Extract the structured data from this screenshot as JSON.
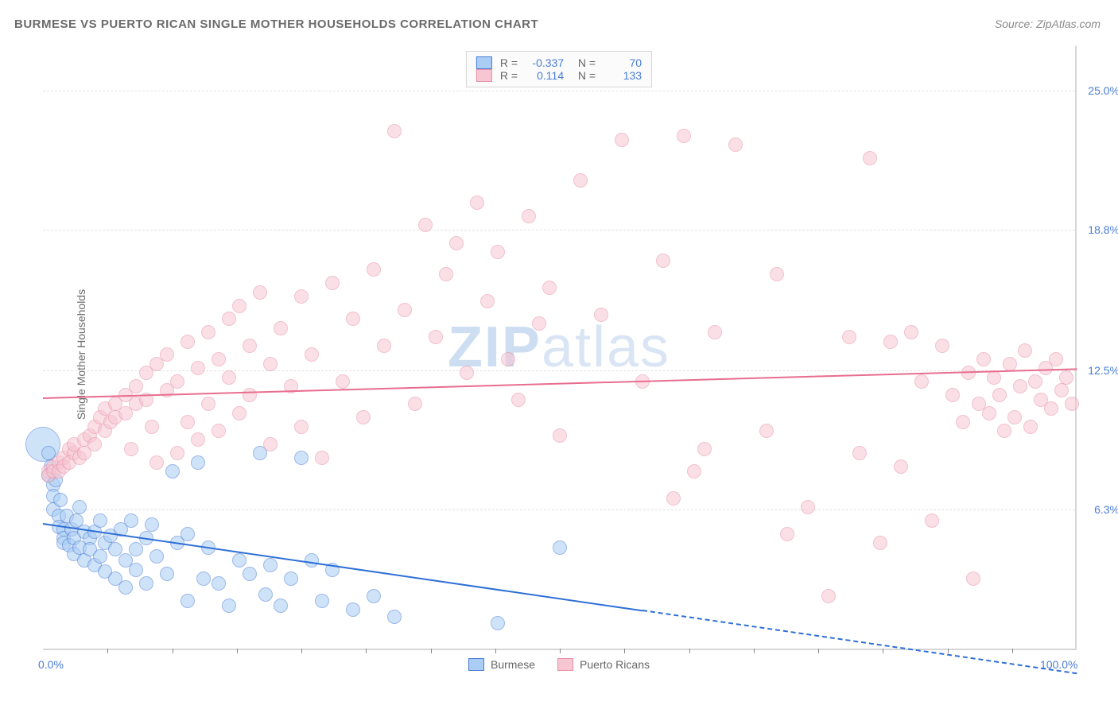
{
  "title": "BURMESE VS PUERTO RICAN SINGLE MOTHER HOUSEHOLDS CORRELATION CHART",
  "source": "Source: ZipAtlas.com",
  "ylabel": "Single Mother Households",
  "watermark": {
    "bold": "ZIP",
    "light": "atlas"
  },
  "chart": {
    "type": "scatter",
    "xlim": [
      0,
      100
    ],
    "ylim": [
      0,
      27
    ],
    "background_color": "#ffffff",
    "grid_color": "#e2e2e2",
    "axis_color": "#d6d6d6",
    "tick_label_color": "#4a7dd6",
    "yticks": [
      {
        "v": 6.3,
        "label": "6.3%"
      },
      {
        "v": 12.5,
        "label": "12.5%"
      },
      {
        "v": 18.8,
        "label": "18.8%"
      },
      {
        "v": 25.0,
        "label": "25.0%"
      }
    ],
    "xticks_minor": [
      6.25,
      12.5,
      18.75,
      25,
      31.25,
      37.5,
      43.75,
      50,
      56.25,
      62.5,
      68.75,
      75,
      81.25,
      87.5,
      93.75
    ],
    "xtick_labels": [
      {
        "v": 0,
        "label": "0.0%"
      },
      {
        "v": 100,
        "label": "100.0%"
      }
    ],
    "marker_radius": 9,
    "marker_opacity": 0.55,
    "series": [
      {
        "name": "Burmese",
        "color_fill": "#a9cdf4",
        "color_stroke": "#4a7dd6",
        "R": "-0.337",
        "N": "70",
        "trend": {
          "y_at_x0": 5.7,
          "y_at_x100": -1.0,
          "solid_until_x": 58,
          "color": "#2e6fd6"
        },
        "points": [
          [
            0.5,
            7.8
          ],
          [
            0.5,
            8.8
          ],
          [
            0.8,
            8.2
          ],
          [
            1,
            7.4
          ],
          [
            1,
            6.9
          ],
          [
            1,
            6.3
          ],
          [
            1.2,
            7.6
          ],
          [
            1.5,
            6.0
          ],
          [
            1.5,
            5.5
          ],
          [
            1.7,
            6.7
          ],
          [
            2,
            5.4
          ],
          [
            2,
            5.0
          ],
          [
            2,
            4.8
          ],
          [
            2.3,
            6.0
          ],
          [
            2.5,
            4.7
          ],
          [
            2.8,
            5.4
          ],
          [
            3,
            5.0
          ],
          [
            3,
            4.3
          ],
          [
            3.2,
            5.8
          ],
          [
            3.5,
            6.4
          ],
          [
            3.5,
            4.6
          ],
          [
            4,
            5.3
          ],
          [
            4,
            4.0
          ],
          [
            4.5,
            5.0
          ],
          [
            4.5,
            4.5
          ],
          [
            5,
            5.3
          ],
          [
            5,
            3.8
          ],
          [
            5.5,
            5.8
          ],
          [
            5.5,
            4.2
          ],
          [
            6,
            4.8
          ],
          [
            6,
            3.5
          ],
          [
            6.5,
            5.1
          ],
          [
            7,
            4.5
          ],
          [
            7,
            3.2
          ],
          [
            7.5,
            5.4
          ],
          [
            8,
            4.0
          ],
          [
            8,
            2.8
          ],
          [
            8.5,
            5.8
          ],
          [
            9,
            3.6
          ],
          [
            9,
            4.5
          ],
          [
            10,
            5.0
          ],
          [
            10,
            3.0
          ],
          [
            10.5,
            5.6
          ],
          [
            11,
            4.2
          ],
          [
            12,
            3.4
          ],
          [
            12.5,
            8.0
          ],
          [
            13,
            4.8
          ],
          [
            14,
            5.2
          ],
          [
            14,
            2.2
          ],
          [
            15,
            8.4
          ],
          [
            15.5,
            3.2
          ],
          [
            16,
            4.6
          ],
          [
            17,
            3.0
          ],
          [
            18,
            2.0
          ],
          [
            19,
            4.0
          ],
          [
            20,
            3.4
          ],
          [
            21,
            8.8
          ],
          [
            21.5,
            2.5
          ],
          [
            22,
            3.8
          ],
          [
            23,
            2.0
          ],
          [
            24,
            3.2
          ],
          [
            25,
            8.6
          ],
          [
            26,
            4.0
          ],
          [
            27,
            2.2
          ],
          [
            28,
            3.6
          ],
          [
            30,
            1.8
          ],
          [
            32,
            2.4
          ],
          [
            34,
            1.5
          ],
          [
            44,
            1.2
          ],
          [
            50,
            4.6
          ]
        ],
        "big_points": [
          [
            0,
            9.2,
            22
          ]
        ]
      },
      {
        "name": "Puerto Ricans",
        "color_fill": "#f6c6d2",
        "color_stroke": "#e88fa6",
        "R": "0.114",
        "N": "133",
        "trend": {
          "y_at_x0": 11.3,
          "y_at_x100": 12.6,
          "solid_until_x": 100,
          "color": "#e86d8e"
        },
        "points": [
          [
            0.5,
            8.0
          ],
          [
            0.5,
            7.8
          ],
          [
            1,
            8.2
          ],
          [
            1,
            8.0
          ],
          [
            1.5,
            8.4
          ],
          [
            1.5,
            8.0
          ],
          [
            2,
            8.6
          ],
          [
            2,
            8.2
          ],
          [
            2.5,
            9.0
          ],
          [
            2.5,
            8.4
          ],
          [
            3,
            8.8
          ],
          [
            3,
            9.2
          ],
          [
            3.5,
            8.6
          ],
          [
            4,
            9.4
          ],
          [
            4,
            8.8
          ],
          [
            4.5,
            9.6
          ],
          [
            5,
            10.0
          ],
          [
            5,
            9.2
          ],
          [
            5.5,
            10.4
          ],
          [
            6,
            9.8
          ],
          [
            6,
            10.8
          ],
          [
            6.5,
            10.2
          ],
          [
            7,
            11.0
          ],
          [
            7,
            10.4
          ],
          [
            8,
            11.4
          ],
          [
            8,
            10.6
          ],
          [
            8.5,
            9.0
          ],
          [
            9,
            11.8
          ],
          [
            9,
            11.0
          ],
          [
            10,
            12.4
          ],
          [
            10,
            11.2
          ],
          [
            10.5,
            10.0
          ],
          [
            11,
            12.8
          ],
          [
            11,
            8.4
          ],
          [
            12,
            13.2
          ],
          [
            12,
            11.6
          ],
          [
            13,
            12.0
          ],
          [
            13,
            8.8
          ],
          [
            14,
            13.8
          ],
          [
            14,
            10.2
          ],
          [
            15,
            12.6
          ],
          [
            15,
            9.4
          ],
          [
            16,
            14.2
          ],
          [
            16,
            11.0
          ],
          [
            17,
            13.0
          ],
          [
            17,
            9.8
          ],
          [
            18,
            14.8
          ],
          [
            18,
            12.2
          ],
          [
            19,
            15.4
          ],
          [
            19,
            10.6
          ],
          [
            20,
            13.6
          ],
          [
            20,
            11.4
          ],
          [
            21,
            16.0
          ],
          [
            22,
            12.8
          ],
          [
            22,
            9.2
          ],
          [
            23,
            14.4
          ],
          [
            24,
            11.8
          ],
          [
            25,
            15.8
          ],
          [
            25,
            10.0
          ],
          [
            26,
            13.2
          ],
          [
            27,
            8.6
          ],
          [
            28,
            16.4
          ],
          [
            29,
            12.0
          ],
          [
            30,
            14.8
          ],
          [
            31,
            10.4
          ],
          [
            32,
            17.0
          ],
          [
            33,
            13.6
          ],
          [
            34,
            23.2
          ],
          [
            35,
            15.2
          ],
          [
            36,
            11.0
          ],
          [
            37,
            19.0
          ],
          [
            38,
            14.0
          ],
          [
            39,
            16.8
          ],
          [
            40,
            18.2
          ],
          [
            41,
            12.4
          ],
          [
            42,
            20.0
          ],
          [
            43,
            15.6
          ],
          [
            44,
            17.8
          ],
          [
            45,
            13.0
          ],
          [
            46,
            11.2
          ],
          [
            47,
            19.4
          ],
          [
            48,
            14.6
          ],
          [
            49,
            16.2
          ],
          [
            50,
            9.6
          ],
          [
            52,
            21.0
          ],
          [
            54,
            15.0
          ],
          [
            56,
            22.8
          ],
          [
            58,
            12.0
          ],
          [
            60,
            17.4
          ],
          [
            61,
            6.8
          ],
          [
            62,
            23.0
          ],
          [
            63,
            8.0
          ],
          [
            64,
            9.0
          ],
          [
            65,
            14.2
          ],
          [
            67,
            22.6
          ],
          [
            70,
            9.8
          ],
          [
            71,
            16.8
          ],
          [
            72,
            5.2
          ],
          [
            74,
            6.4
          ],
          [
            76,
            2.4
          ],
          [
            78,
            14.0
          ],
          [
            79,
            8.8
          ],
          [
            80,
            22.0
          ],
          [
            81,
            4.8
          ],
          [
            82,
            13.8
          ],
          [
            83,
            8.2
          ],
          [
            84,
            14.2
          ],
          [
            85,
            12.0
          ],
          [
            86,
            5.8
          ],
          [
            87,
            13.6
          ],
          [
            88,
            11.4
          ],
          [
            89,
            10.2
          ],
          [
            89.5,
            12.4
          ],
          [
            90,
            3.2
          ],
          [
            90.5,
            11.0
          ],
          [
            91,
            13.0
          ],
          [
            91.5,
            10.6
          ],
          [
            92,
            12.2
          ],
          [
            92.5,
            11.4
          ],
          [
            93,
            9.8
          ],
          [
            93.5,
            12.8
          ],
          [
            94,
            10.4
          ],
          [
            94.5,
            11.8
          ],
          [
            95,
            13.4
          ],
          [
            95.5,
            10.0
          ],
          [
            96,
            12.0
          ],
          [
            96.5,
            11.2
          ],
          [
            97,
            12.6
          ],
          [
            97.5,
            10.8
          ],
          [
            98,
            13.0
          ],
          [
            98.5,
            11.6
          ],
          [
            99,
            12.2
          ],
          [
            99.5,
            11.0
          ]
        ]
      }
    ],
    "legend": [
      {
        "label": "Burmese",
        "fill": "#a9cdf4",
        "stroke": "#4a7dd6"
      },
      {
        "label": "Puerto Ricans",
        "fill": "#f6c6d2",
        "stroke": "#e88fa6"
      }
    ]
  }
}
